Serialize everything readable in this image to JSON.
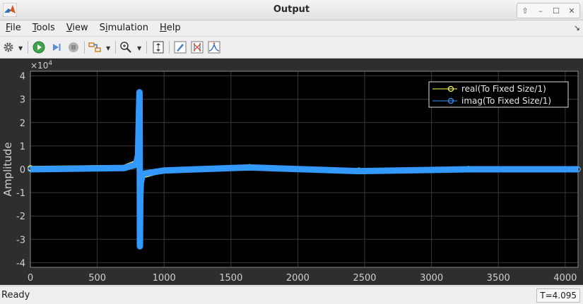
{
  "window": {
    "title": "Output",
    "controls": [
      "up-arrow",
      "minimize",
      "maximize",
      "close"
    ]
  },
  "menu": {
    "items": [
      {
        "label": "File",
        "mnemonic": "F",
        "rest": "ile"
      },
      {
        "label": "Tools",
        "mnemonic": "T",
        "rest": "ools"
      },
      {
        "label": "View",
        "mnemonic": "V",
        "rest": "iew"
      },
      {
        "label": "Simulation",
        "mnemonic": "i",
        "prefix": "S",
        "rest": "mulation"
      },
      {
        "label": "Help",
        "mnemonic": "H",
        "rest": "elp"
      }
    ]
  },
  "toolbar": {
    "icons": [
      "gear-icon",
      "run-icon",
      "step-forward-icon",
      "stop-icon",
      "signal-select-icon",
      "zoom-icon",
      "scale-axes-icon",
      "highlight-icon",
      "cursor-measure-icon",
      "peak-finder-icon"
    ]
  },
  "chart_data": {
    "type": "line",
    "ylabel": "Amplitude",
    "xlabel": "",
    "exponent_label": "×10",
    "exponent_power": "4",
    "xlim": [
      0,
      4096
    ],
    "ylim": [
      -4.2,
      4.2
    ],
    "xticks": [
      0,
      500,
      1000,
      1500,
      2000,
      2500,
      3000,
      3500,
      4000
    ],
    "yticks": [
      4,
      3,
      2,
      1,
      0,
      -1,
      -2,
      -3,
      -4
    ],
    "yticklabels": [
      "4",
      "3",
      "2",
      "1",
      "0",
      "-1",
      "-2",
      "-3",
      "-4"
    ],
    "grid": true,
    "legend_position": "top-right",
    "series": [
      {
        "name": "real(To Fixed Size/1)",
        "color": "#ffff66",
        "marker": "circle",
        "points": [
          [
            0,
            0.05
          ],
          [
            700,
            0.1
          ],
          [
            790,
            0.3
          ],
          [
            805,
            0.8
          ],
          [
            812,
            1.8
          ],
          [
            815,
            1.1
          ],
          [
            817,
            0.5
          ],
          [
            818,
            -0.2
          ],
          [
            820,
            -0.7
          ],
          [
            822,
            -2.2
          ],
          [
            823,
            -1.4
          ],
          [
            826,
            -0.8
          ],
          [
            840,
            -0.3
          ],
          [
            1000,
            -0.05
          ],
          [
            1638,
            0.1
          ],
          [
            2457,
            -0.05
          ],
          [
            3276,
            0.02
          ],
          [
            4095,
            0.0
          ]
        ]
      },
      {
        "name": "imag(To Fixed Size/1)",
        "color": "#3399ff",
        "marker": "circle",
        "points": [
          [
            0,
            0.0
          ],
          [
            700,
            0.05
          ],
          [
            790,
            0.2
          ],
          [
            805,
            0.6
          ],
          [
            812,
            2.4
          ],
          [
            816,
            3.3
          ],
          [
            818,
            0.0
          ],
          [
            819,
            -3.3
          ],
          [
            822,
            -1.2
          ],
          [
            826,
            -0.6
          ],
          [
            840,
            -0.2
          ],
          [
            1000,
            -0.05
          ],
          [
            1638,
            0.08
          ],
          [
            2457,
            -0.08
          ],
          [
            3276,
            0.0
          ],
          [
            4095,
            0.0
          ]
        ]
      }
    ]
  },
  "status": {
    "text": "Ready",
    "time": "T=4.095"
  }
}
